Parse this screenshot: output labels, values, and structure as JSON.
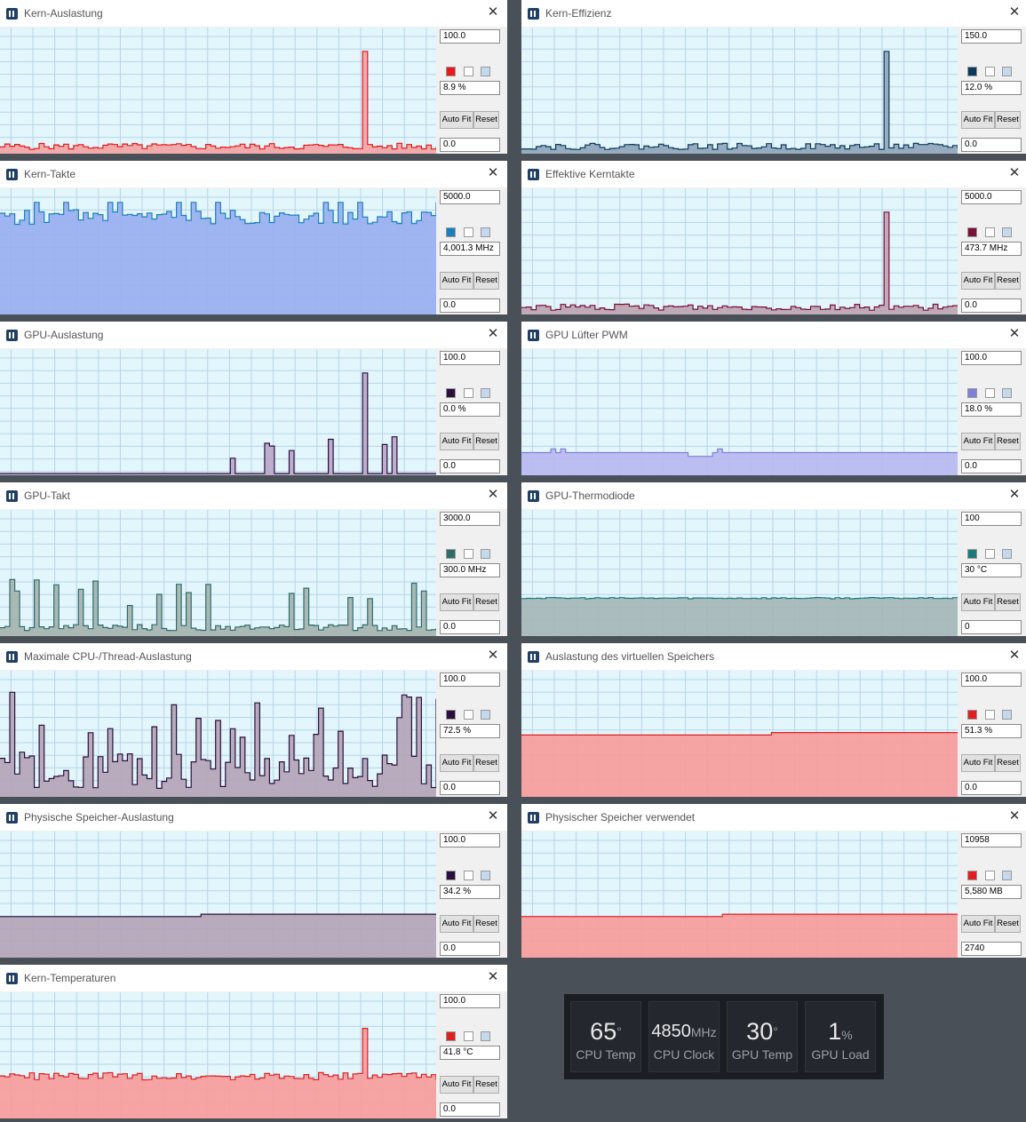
{
  "panels": [
    {
      "id": "kern-auslastung",
      "title": "Kern-Auslastung",
      "max": "100.0",
      "current": "8.9 %",
      "min": "0.0",
      "color": "#e81818",
      "fill": "#f4a3a3",
      "shape": "low-spike"
    },
    {
      "id": "kern-effizienz",
      "title": "Kern-Effizienz",
      "max": "150.0",
      "current": "12.0 %",
      "min": "0.0",
      "color": "#0c3a5e",
      "fill": "#8fa4b8",
      "shape": "low-spike"
    },
    {
      "id": "kern-takte",
      "title": "Kern-Takte",
      "max": "5000.0",
      "current": "4,001.3 MHz",
      "min": "0.0",
      "color": "#1a7fbf",
      "fill": "#98aef0",
      "shape": "high"
    },
    {
      "id": "effektive-kerntakte",
      "title": "Effektive Kerntakte",
      "max": "5000.0",
      "current": "473.7 MHz",
      "min": "0.0",
      "color": "#7a1038",
      "fill": "#bca3b1",
      "shape": "low-spike"
    },
    {
      "id": "gpu-auslastung",
      "title": "GPU-Auslastung",
      "max": "100.0",
      "current": "0.0 %",
      "min": "0.0",
      "color": "#2a0f3c",
      "fill": "#b8a6c6",
      "shape": "sparse"
    },
    {
      "id": "gpu-luefter-pwm",
      "title": "GPU Lüfter PWM",
      "max": "100.0",
      "current": "18.0 %",
      "min": "0.0",
      "color": "#8080d8",
      "fill": "#b8b8f0",
      "shape": "flat18"
    },
    {
      "id": "gpu-takt",
      "title": "GPU-Takt",
      "max": "3000.0",
      "current": "300.0 MHz",
      "min": "0.0",
      "color": "#2f6b6b",
      "fill": "#a5b3ad",
      "shape": "bursts"
    },
    {
      "id": "gpu-thermodiode",
      "title": "GPU-Thermodiode",
      "max": "100",
      "current": "30 °C",
      "min": "0",
      "color": "#1b7a7a",
      "fill": "#a4b6b6",
      "shape": "flat30"
    },
    {
      "id": "max-cpu-thread",
      "title": "Maximale CPU-/Thread-Auslastung",
      "max": "100.0",
      "current": "72.5 %",
      "min": "0.0",
      "color": "#2a0f3c",
      "fill": "#b4a3b6",
      "shape": "busy"
    },
    {
      "id": "virt-speicher",
      "title": "Auslastung des virtuellen Speichers",
      "max": "100.0",
      "current": "51.3 %",
      "min": "0.0",
      "color": "#e02020",
      "fill": "#f89a9a",
      "shape": "flat51"
    },
    {
      "id": "phys-speicher-auslastung",
      "title": "Physische Speicher-Auslastung",
      "max": "100.0",
      "current": "34.2 %",
      "min": "0.0",
      "color": "#2a0f3c",
      "fill": "#b4a3b6",
      "shape": "flat34"
    },
    {
      "id": "phys-speicher-verwendet",
      "title": "Physischer Speicher verwendet",
      "max": "10958",
      "current": "5,580 MB",
      "min": "2740",
      "color": "#e02020",
      "fill": "#f89a9a",
      "shape": "flat34"
    },
    {
      "id": "kern-temperaturen",
      "title": "Kern-Temperaturen",
      "max": "100.0",
      "current": "41.8 °C",
      "min": "0.0",
      "color": "#e02020",
      "fill": "#f89a9a",
      "shape": "temp"
    }
  ],
  "buttons": {
    "auto_fit": "Auto Fit",
    "reset": "Reset"
  },
  "osd": {
    "tiles": [
      {
        "value": "65",
        "unit": "°",
        "label": "CPU Temp"
      },
      {
        "value": "4850",
        "unit": "MHz",
        "label": "CPU Clock"
      },
      {
        "value": "30",
        "unit": "°",
        "label": "GPU Temp"
      },
      {
        "value": "1",
        "unit": "%",
        "label": "GPU Load"
      }
    ]
  },
  "icons": {
    "panel_icon": "hwinfo-graph-icon",
    "close_icon": "close-icon"
  }
}
